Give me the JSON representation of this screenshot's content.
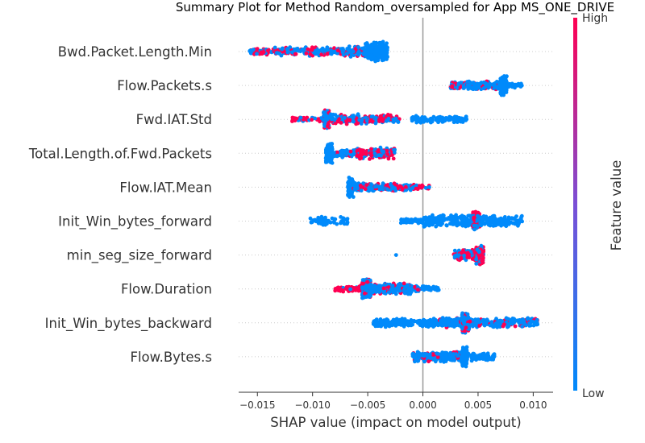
{
  "chart_data": {
    "type": "scatter",
    "title": "Summary Plot for Method Random_oversampled for App MS_ONE_DRIVE",
    "xlabel": "SHAP value (impact on model output)",
    "xlim": [
      -0.0167,
      0.0118
    ],
    "xticks": [
      "−0.015",
      "−0.010",
      "−0.005",
      "0.000",
      "0.005",
      "0.010"
    ],
    "xtick_values": [
      -0.015,
      -0.01,
      -0.005,
      0.0,
      0.005,
      0.01
    ],
    "zero_line": 0.0,
    "grid": "dotted horizontal guides per feature",
    "colors": {
      "low": "#008afb",
      "high": "#ff0052",
      "zero_line": "#999999"
    },
    "colorbar": {
      "label": "Feature value",
      "high": "High",
      "low": "Low"
    },
    "features": [
      {
        "name": "Bwd.Packet.Length.Min",
        "clusters": [
          {
            "from": -0.0158,
            "to": -0.0135,
            "count": 70,
            "spread": 0.35,
            "high_frac": 0.6
          },
          {
            "from": -0.0135,
            "to": -0.007,
            "count": 170,
            "spread": 0.45,
            "high_frac": 0.4
          },
          {
            "from": -0.007,
            "to": -0.0052,
            "count": 80,
            "spread": 0.55,
            "high_frac": 0.35
          },
          {
            "from": -0.0052,
            "to": -0.0032,
            "count": 260,
            "spread": 1.0,
            "high_frac": 0.0
          }
        ]
      },
      {
        "name": "Flow.Packets.s",
        "clusters": [
          {
            "from": 0.0025,
            "to": 0.004,
            "count": 60,
            "spread": 0.4,
            "high_frac": 0.35
          },
          {
            "from": 0.004,
            "to": 0.007,
            "count": 140,
            "spread": 0.45,
            "high_frac": 0.1
          },
          {
            "from": 0.007,
            "to": 0.0076,
            "count": 120,
            "spread": 1.0,
            "high_frac": 0.0
          },
          {
            "from": 0.0076,
            "to": 0.009,
            "count": 30,
            "spread": 0.25,
            "high_frac": 0.0
          }
        ]
      },
      {
        "name": "Fwd.IAT.Std",
        "clusters": [
          {
            "from": -0.012,
            "to": -0.009,
            "count": 40,
            "spread": 0.3,
            "high_frac": 0.6
          },
          {
            "from": -0.009,
            "to": -0.0085,
            "count": 120,
            "spread": 1.0,
            "high_frac": 0.3
          },
          {
            "from": -0.0085,
            "to": -0.002,
            "count": 220,
            "spread": 0.5,
            "high_frac": 0.45
          },
          {
            "from": -0.001,
            "to": 0.004,
            "count": 140,
            "spread": 0.35,
            "high_frac": 0.0
          }
        ]
      },
      {
        "name": "Total.Length.of.Fwd.Packets",
        "clusters": [
          {
            "from": -0.0088,
            "to": -0.0082,
            "count": 110,
            "spread": 1.0,
            "high_frac": 0.0
          },
          {
            "from": -0.0082,
            "to": -0.0055,
            "count": 80,
            "spread": 0.4,
            "high_frac": 0.2
          },
          {
            "from": -0.006,
            "to": -0.0025,
            "count": 140,
            "spread": 0.6,
            "high_frac": 0.5
          }
        ]
      },
      {
        "name": "Flow.IAT.Mean",
        "clusters": [
          {
            "from": -0.0068,
            "to": -0.0063,
            "count": 110,
            "spread": 1.0,
            "high_frac": 0.0
          },
          {
            "from": -0.0063,
            "to": -0.001,
            "count": 200,
            "spread": 0.4,
            "high_frac": 0.3
          },
          {
            "from": -0.001,
            "to": 0.0006,
            "count": 30,
            "spread": 0.25,
            "high_frac": 0.7
          }
        ]
      },
      {
        "name": "Init_Win_bytes_forward",
        "clusters": [
          {
            "from": -0.0102,
            "to": -0.0068,
            "count": 60,
            "spread": 0.45,
            "high_frac": 0.0
          },
          {
            "from": -0.002,
            "to": 0.0,
            "count": 40,
            "spread": 0.25,
            "high_frac": 0.0
          },
          {
            "from": 0.0,
            "to": 0.0045,
            "count": 180,
            "spread": 0.65,
            "high_frac": 0.0
          },
          {
            "from": 0.0045,
            "to": 0.0052,
            "count": 140,
            "spread": 1.0,
            "high_frac": 0.4
          },
          {
            "from": 0.0052,
            "to": 0.009,
            "count": 150,
            "spread": 0.55,
            "high_frac": 0.0
          }
        ]
      },
      {
        "name": "min_seg_size_forward",
        "clusters": [
          {
            "from": -0.0025,
            "to": -0.0024,
            "count": 1,
            "spread": 0.0,
            "high_frac": 0.0
          },
          {
            "from": 0.0028,
            "to": 0.0048,
            "count": 110,
            "spread": 0.55,
            "high_frac": 0.5
          },
          {
            "from": 0.0048,
            "to": 0.0055,
            "count": 160,
            "spread": 1.0,
            "high_frac": 0.6
          }
        ]
      },
      {
        "name": "Flow.Duration",
        "clusters": [
          {
            "from": -0.008,
            "to": -0.0055,
            "count": 60,
            "spread": 0.35,
            "high_frac": 0.7
          },
          {
            "from": -0.0055,
            "to": -0.0047,
            "count": 160,
            "spread": 1.0,
            "high_frac": 0.35
          },
          {
            "from": -0.0047,
            "to": -0.001,
            "count": 200,
            "spread": 0.55,
            "high_frac": 0.2
          },
          {
            "from": -0.001,
            "to": 0.0015,
            "count": 60,
            "spread": 0.3,
            "high_frac": 0.1
          }
        ]
      },
      {
        "name": "Init_Win_bytes_backward",
        "clusters": [
          {
            "from": -0.0045,
            "to": 0.0015,
            "count": 200,
            "spread": 0.45,
            "high_frac": 0.0
          },
          {
            "from": 0.0015,
            "to": 0.0035,
            "count": 120,
            "spread": 0.5,
            "high_frac": 0.15
          },
          {
            "from": 0.0035,
            "to": 0.0042,
            "count": 150,
            "spread": 1.0,
            "high_frac": 0.25
          },
          {
            "from": 0.0042,
            "to": 0.0104,
            "count": 200,
            "spread": 0.5,
            "high_frac": 0.15
          }
        ]
      },
      {
        "name": "Flow.Bytes.s",
        "clusters": [
          {
            "from": -0.001,
            "to": 0.0035,
            "count": 200,
            "spread": 0.55,
            "high_frac": 0.15
          },
          {
            "from": 0.0035,
            "to": 0.004,
            "count": 150,
            "spread": 1.0,
            "high_frac": 0.0
          },
          {
            "from": 0.004,
            "to": 0.0065,
            "count": 80,
            "spread": 0.45,
            "high_frac": 0.0
          }
        ]
      }
    ]
  }
}
